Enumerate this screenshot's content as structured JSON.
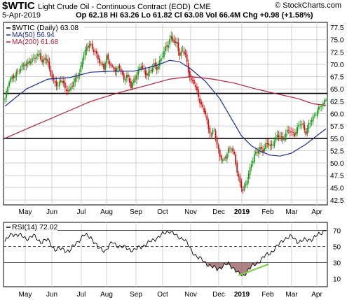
{
  "header": {
    "symbol": "$WTIC",
    "description": "Light Crude Oil - Continuous Contract (EOD)",
    "exchange": "CME",
    "date": "5-Apr-2019",
    "stats": "Op 62.18  Hi 63.26  Lo 61.82  Cl 63.08  Vol 66.4M  Chg +0.98 (+1.58%)",
    "copyright": "© StockCharts.com"
  },
  "colors": {
    "up": "#1a9a1a",
    "down": "#cc1111",
    "ma50": "#1c2f8c",
    "ma200": "#b01f3a",
    "level": "#000000",
    "rsi_fill": "#9b6464",
    "trendline": "#7ad03a",
    "grid": "#d0d0d0"
  },
  "chart_data": [
    {
      "type": "candlestick",
      "title": "$WTIC (Daily) 63.08",
      "legend": [
        {
          "name": "MA(50) 56.94",
          "color": "#1c2f8c"
        },
        {
          "name": "MA(200) 61.68",
          "color": "#b01f3a"
        }
      ],
      "y_ticks": [
        42.5,
        45.0,
        47.5,
        50.0,
        52.5,
        55.0,
        57.5,
        60.0,
        62.5,
        65.0,
        67.5,
        70.0,
        72.5,
        75.0,
        77.5
      ],
      "x_ticks": [
        "May",
        "Jun",
        "Jul",
        "Aug",
        "Sep",
        "Oct",
        "Nov",
        "Dec",
        "2019",
        "Feb",
        "Mar",
        "Apr"
      ],
      "ylim": [
        41.5,
        78.5
      ],
      "horizontal_levels": [
        64.1,
        55.0
      ],
      "closes": [
        [
          0,
          63.0
        ],
        [
          3,
          66.5
        ],
        [
          6,
          67.5
        ],
        [
          8,
          68.4
        ],
        [
          12,
          69.6
        ],
        [
          16,
          70.0
        ],
        [
          20,
          71.5
        ],
        [
          24,
          72.0
        ],
        [
          26,
          70.2
        ],
        [
          29,
          71.3
        ],
        [
          31,
          69.0
        ],
        [
          34,
          66.7
        ],
        [
          37,
          65.5
        ],
        [
          40,
          66.8
        ],
        [
          42,
          65.0
        ],
        [
          45,
          64.9
        ],
        [
          48,
          66.4
        ],
        [
          52,
          68.0
        ],
        [
          55,
          72.2
        ],
        [
          57,
          73.5
        ],
        [
          59,
          74.2
        ],
        [
          61,
          73.0
        ],
        [
          63,
          72.3
        ],
        [
          66,
          70.6
        ],
        [
          69,
          69.5
        ],
        [
          71,
          71.5
        ],
        [
          74,
          69.4
        ],
        [
          77,
          68.8
        ],
        [
          80,
          69.8
        ],
        [
          83,
          66.8
        ],
        [
          85,
          67.7
        ],
        [
          88,
          65.4
        ],
        [
          90,
          66.9
        ],
        [
          93,
          68.8
        ],
        [
          95,
          69.8
        ],
        [
          98,
          67.7
        ],
        [
          101,
          68.4
        ],
        [
          104,
          70.2
        ],
        [
          106,
          69.2
        ],
        [
          109,
          71.0
        ],
        [
          112,
          73.2
        ],
        [
          114,
          74.3
        ],
        [
          116,
          75.8
        ],
        [
          118,
          74.6
        ],
        [
          120,
          74.0
        ],
        [
          122,
          71.5
        ],
        [
          124,
          73.0
        ],
        [
          126,
          72.0
        ],
        [
          128,
          68.8
        ],
        [
          130,
          66.6
        ],
        [
          132,
          66.2
        ],
        [
          134,
          64.2
        ],
        [
          136,
          62.4
        ],
        [
          138,
          61.2
        ],
        [
          140,
          60.2
        ],
        [
          142,
          56.8
        ],
        [
          144,
          55.6
        ],
        [
          146,
          56.6
        ],
        [
          148,
          53.6
        ],
        [
          150,
          51.6
        ],
        [
          152,
          50.6
        ],
        [
          154,
          51.3
        ],
        [
          156,
          52.5
        ],
        [
          158,
          52.9
        ],
        [
          160,
          51.5
        ],
        [
          162,
          48.5
        ],
        [
          164,
          46.0
        ],
        [
          166,
          44.5
        ],
        [
          168,
          45.5
        ],
        [
          170,
          47.6
        ],
        [
          172,
          49.8
        ],
        [
          174,
          51.8
        ],
        [
          176,
          52.5
        ],
        [
          178,
          53.0
        ],
        [
          180,
          52.2
        ],
        [
          182,
          53.5
        ],
        [
          184,
          54.0
        ],
        [
          186,
          53.4
        ],
        [
          188,
          54.7
        ],
        [
          190,
          55.5
        ],
        [
          192,
          55.3
        ],
        [
          194,
          54.4
        ],
        [
          196,
          56.0
        ],
        [
          198,
          57.0
        ],
        [
          200,
          56.3
        ],
        [
          202,
          55.6
        ],
        [
          204,
          56.8
        ],
        [
          206,
          58.1
        ],
        [
          208,
          57.5
        ],
        [
          210,
          56.2
        ],
        [
          212,
          58.0
        ],
        [
          214,
          58.8
        ],
        [
          216,
          59.3
        ],
        [
          218,
          60.5
        ],
        [
          220,
          61.6
        ],
        [
          222,
          62.2
        ],
        [
          224,
          63.08
        ]
      ],
      "ma50": [
        [
          0,
          61.5
        ],
        [
          15,
          65.0
        ],
        [
          30,
          67.0
        ],
        [
          45,
          67.3
        ],
        [
          60,
          68.4
        ],
        [
          75,
          68.6
        ],
        [
          90,
          68.6
        ],
        [
          105,
          69.7
        ],
        [
          115,
          70.8
        ],
        [
          122,
          70.5
        ],
        [
          130,
          69.0
        ],
        [
          140,
          66.5
        ],
        [
          150,
          63.0
        ],
        [
          158,
          59.0
        ],
        [
          165,
          55.5
        ],
        [
          172,
          53.5
        ],
        [
          178,
          52.4
        ],
        [
          185,
          51.6
        ],
        [
          192,
          51.4
        ],
        [
          200,
          52.0
        ],
        [
          210,
          53.8
        ],
        [
          218,
          55.6
        ],
        [
          224,
          56.94
        ]
      ],
      "ma200": [
        [
          0,
          55.0
        ],
        [
          20,
          57.5
        ],
        [
          40,
          60.0
        ],
        [
          60,
          62.5
        ],
        [
          80,
          64.3
        ],
        [
          100,
          65.8
        ],
        [
          115,
          67.0
        ],
        [
          130,
          67.5
        ],
        [
          145,
          67.0
        ],
        [
          160,
          66.2
        ],
        [
          175,
          65.0
        ],
        [
          190,
          64.0
        ],
        [
          205,
          63.0
        ],
        [
          215,
          62.0
        ],
        [
          224,
          61.68
        ]
      ]
    },
    {
      "type": "line",
      "title": "RSI(14) 72.02",
      "y_ticks": [
        10,
        30,
        50,
        70
      ],
      "ylim": [
        0,
        80
      ],
      "reference_levels": [
        30,
        50,
        70
      ],
      "x_ticks": [
        "May",
        "Jun",
        "Jul",
        "Aug",
        "Sep",
        "Oct",
        "Nov",
        "Dec",
        "2019",
        "Feb",
        "Mar",
        "Apr"
      ],
      "values": [
        [
          0,
          56
        ],
        [
          5,
          66
        ],
        [
          10,
          64
        ],
        [
          15,
          60
        ],
        [
          20,
          63
        ],
        [
          25,
          56
        ],
        [
          30,
          58
        ],
        [
          35,
          46
        ],
        [
          40,
          47
        ],
        [
          45,
          44
        ],
        [
          50,
          55
        ],
        [
          55,
          64
        ],
        [
          60,
          62
        ],
        [
          65,
          48
        ],
        [
          70,
          45
        ],
        [
          75,
          55
        ],
        [
          80,
          50
        ],
        [
          85,
          48
        ],
        [
          90,
          45
        ],
        [
          95,
          50
        ],
        [
          100,
          54
        ],
        [
          105,
          60
        ],
        [
          110,
          65
        ],
        [
          115,
          70
        ],
        [
          120,
          62
        ],
        [
          125,
          60
        ],
        [
          130,
          45
        ],
        [
          135,
          36
        ],
        [
          140,
          30
        ],
        [
          145,
          24
        ],
        [
          148,
          22
        ],
        [
          152,
          26
        ],
        [
          156,
          28
        ],
        [
          160,
          23
        ],
        [
          163,
          16
        ],
        [
          166,
          13
        ],
        [
          170,
          22
        ],
        [
          175,
          28
        ],
        [
          180,
          36
        ],
        [
          185,
          42
        ],
        [
          190,
          50
        ],
        [
          195,
          60
        ],
        [
          200,
          62
        ],
        [
          205,
          56
        ],
        [
          210,
          58
        ],
        [
          215,
          60
        ],
        [
          220,
          66
        ],
        [
          224,
          72
        ]
      ],
      "trendline": [
        [
          163,
          14
        ],
        [
          184,
          28
        ]
      ]
    }
  ]
}
